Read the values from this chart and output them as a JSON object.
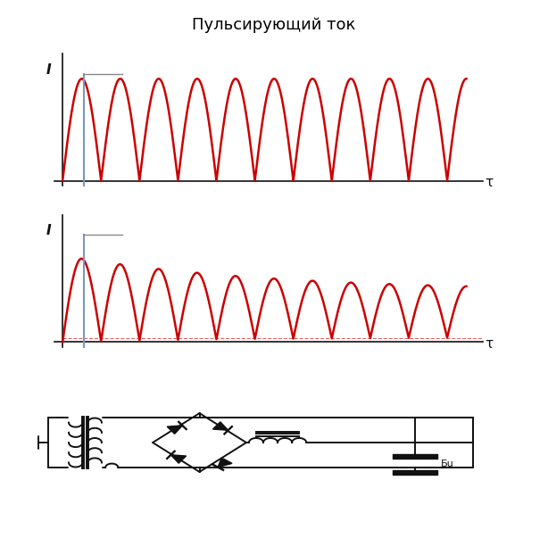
{
  "title": "Пульсирующий ток",
  "title_fontsize": 13,
  "bg": "#ffffff",
  "red": "#cc0000",
  "black": "#111111",
  "blue": "#7799bb",
  "gray": "#888888",
  "tau": "τ",
  "I_lbl": "I"
}
